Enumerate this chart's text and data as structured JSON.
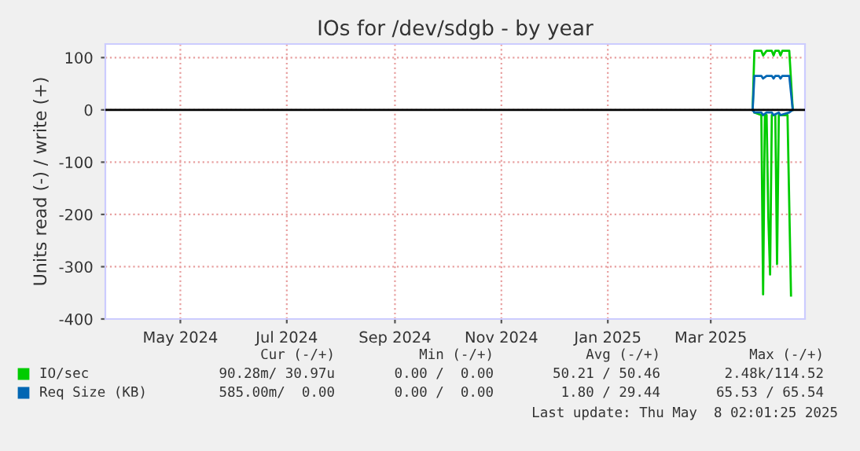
{
  "chart_data": {
    "type": "line",
    "title": "IOs for /dev/sdgb - by year",
    "ylabel": "Units read (-) / write (+)",
    "xlim": [
      "2024-03-19",
      "2025-04-24"
    ],
    "xticks": [
      {
        "value": "2024-05-01",
        "label": "May 2024"
      },
      {
        "value": "2024-07-01",
        "label": "Jul 2024"
      },
      {
        "value": "2024-09-01",
        "label": "Sep 2024"
      },
      {
        "value": "2024-11-01",
        "label": "Nov 2024"
      },
      {
        "value": "2025-01-01",
        "label": "Jan 2025"
      },
      {
        "value": "2025-03-01",
        "label": "Mar 2025"
      }
    ],
    "ylim": [
      -400,
      126
    ],
    "yticks": [
      -400,
      -300,
      -200,
      -100,
      0,
      100
    ],
    "grid": true,
    "legend": "bottom left",
    "series": [
      {
        "name": "IO/sec",
        "color": "#00cc00",
        "x": [
          "2025-03-25",
          "2025-03-26",
          "2025-03-30",
          "2025-03-31",
          "2025-04-02",
          "2025-04-05",
          "2025-04-06",
          "2025-04-07",
          "2025-04-09",
          "2025-04-10",
          "2025-04-11",
          "2025-04-15",
          "2025-04-17"
        ],
        "values": [
          0,
          113,
          113,
          104,
          113,
          113,
          104,
          113,
          113,
          104,
          113,
          113,
          0
        ]
      },
      {
        "color": "#00cc00",
        "x": [
          "2025-03-26",
          "2025-03-30",
          "2025-03-31",
          "2025-04-01",
          "2025-04-02",
          "2025-04-03",
          "2025-04-04",
          "2025-04-05",
          "2025-04-07",
          "2025-04-08",
          "2025-04-09",
          "2025-04-14",
          "2025-04-16"
        ],
        "values": [
          -5,
          -10,
          -353,
          -10,
          -10,
          -205,
          -315,
          -10,
          -10,
          -295,
          -10,
          -10,
          -355
        ]
      },
      {
        "name": "Req Size (KB)",
        "color": "#0066b3",
        "x": [
          "2025-03-25",
          "2025-03-26",
          "2025-03-30",
          "2025-03-31",
          "2025-04-02",
          "2025-04-05",
          "2025-04-06",
          "2025-04-07",
          "2025-04-09",
          "2025-04-10",
          "2025-04-11",
          "2025-04-15",
          "2025-04-17"
        ],
        "values": [
          0,
          65,
          65,
          60,
          65,
          65,
          60,
          65,
          65,
          60,
          65,
          65,
          0
        ]
      },
      {
        "color": "#0066b3",
        "x": [
          "2025-03-25",
          "2025-03-26",
          "2025-03-30",
          "2025-03-31",
          "2025-04-02",
          "2025-04-05",
          "2025-04-06",
          "2025-04-09",
          "2025-04-10",
          "2025-04-15",
          "2025-04-17"
        ],
        "values": [
          0,
          -5,
          -5,
          -10,
          -5,
          -5,
          -10,
          -5,
          -10,
          -5,
          0
        ]
      }
    ],
    "ref_lines": [
      {
        "axis": "y",
        "value": 0,
        "color": "#000000"
      }
    ],
    "annotations": [
      "Cur (-/+)",
      "Min (-/+)",
      "Avg (-/+)",
      "Max (-/+)",
      "90.28m/ 30.97u",
      "0.00 /  0.00",
      "50.21 / 50.46",
      "2.48k/114.52",
      "585.00m/  0.00",
      "0.00 /  0.00",
      "1.80 / 29.44",
      "65.53 / 65.54",
      "Last update: Thu May  8 02:01:25 2025"
    ]
  }
}
